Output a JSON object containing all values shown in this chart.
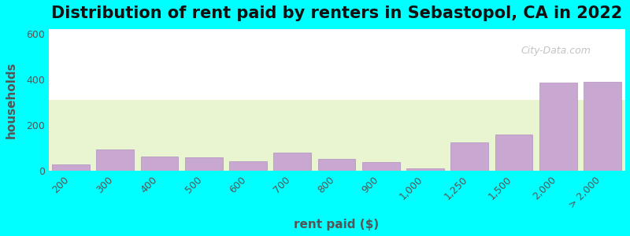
{
  "title": "Distribution of rent paid by renters in Sebastopol, CA in 2022",
  "xlabel": "rent paid ($)",
  "ylabel": "households",
  "categories": [
    "200",
    "300",
    "400",
    "500",
    "600",
    "700",
    "800",
    "900",
    "1,000",
    "1,250",
    "1,500",
    "2,000",
    "> 2,000"
  ],
  "values": [
    28,
    93,
    62,
    58,
    42,
    80,
    52,
    40,
    12,
    125,
    158,
    385,
    390
  ],
  "bar_color": "#c8a8d0",
  "bar_edge_color": "#b090c0",
  "background_top": "#f0f8e8",
  "background_bottom": "#ffffff",
  "bg_outer": "#00ffff",
  "ylim": [
    0,
    620
  ],
  "yticks": [
    0,
    200,
    400,
    600
  ],
  "title_fontsize": 15,
  "axis_label_fontsize": 11,
  "tick_fontsize": 9,
  "watermark_text": "City-Data.com"
}
